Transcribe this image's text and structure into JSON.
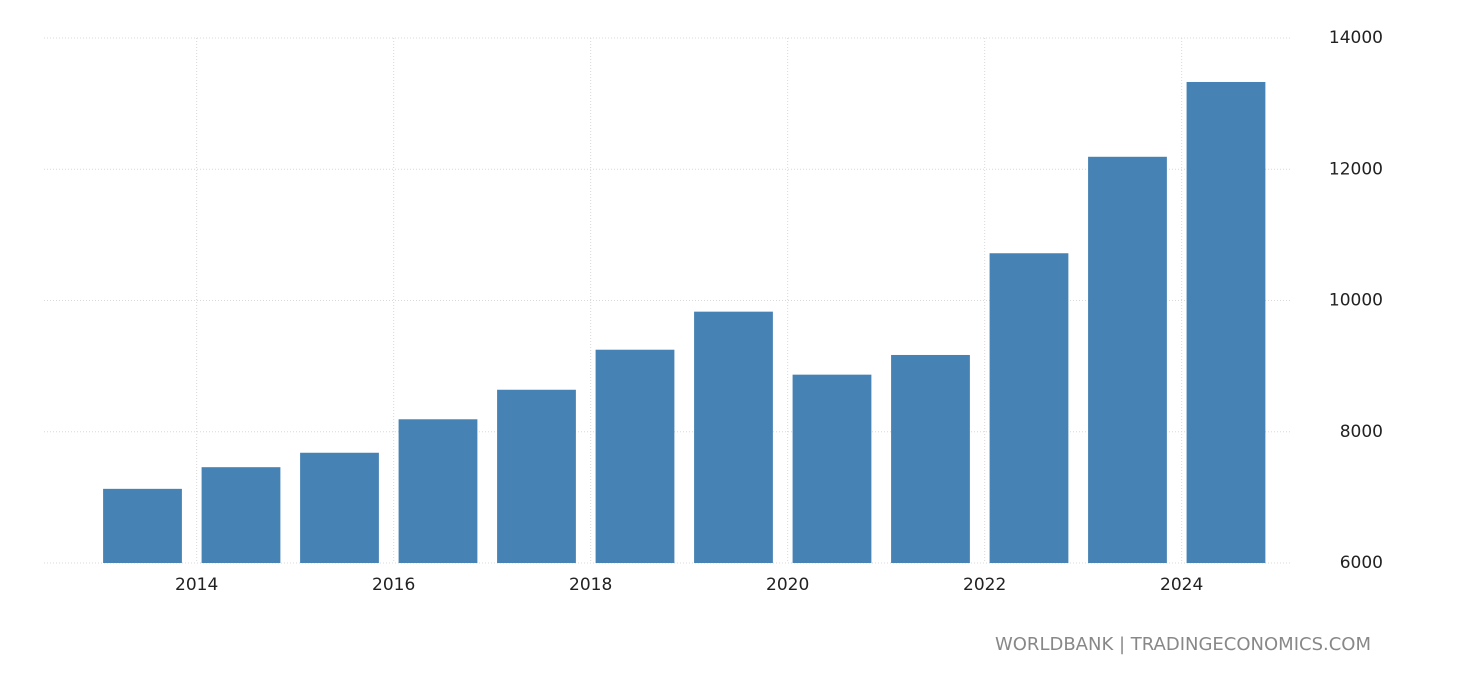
{
  "chart_data": {
    "type": "bar",
    "x": [
      2013,
      2014,
      2015,
      2016,
      2017,
      2018,
      2019,
      2020,
      2021,
      2022,
      2023,
      2024
    ],
    "values": [
      7130,
      7460,
      7680,
      8190,
      8640,
      9250,
      9830,
      8870,
      9170,
      10720,
      12190,
      13330
    ],
    "color": "#4682b4",
    "xlim": [
      2012.45,
      2025.1
    ],
    "xticks": [
      2014,
      2016,
      2018,
      2020,
      2022,
      2024
    ],
    "ylim": [
      6000,
      14000
    ],
    "yticks": [
      6000,
      8000,
      10000,
      12000,
      14000
    ],
    "grid": true,
    "source": "WORLDBANK | TRADINGECONOMICS.COM"
  }
}
